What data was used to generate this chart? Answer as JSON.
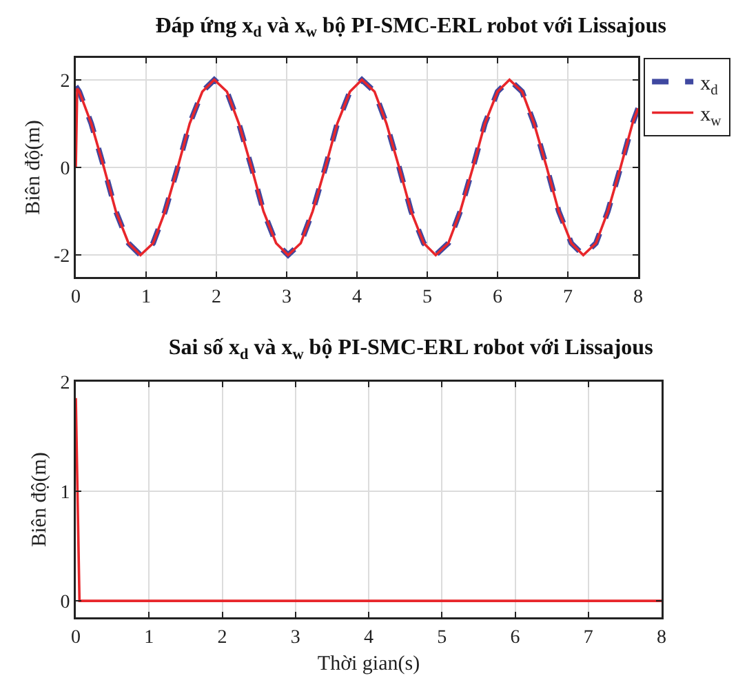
{
  "chart_data": [
    {
      "type": "line",
      "title": "Đáp ứng x$_{d}$ và x$_{w}$ bộ PI-SMC-ERL robot với Lissajous",
      "ylabel": "Biên độ(m)",
      "xlim": [
        0,
        8
      ],
      "xticks": [
        0,
        1,
        2,
        3,
        4,
        5,
        6,
        7,
        8
      ],
      "ylim": [
        -2.5,
        2.5
      ],
      "yticks": [
        -2,
        0,
        2
      ],
      "grid": true,
      "legend": "top right",
      "series": [
        {
          "name": "x$_{d}$",
          "color": "#3f48a0",
          "line_style": "dashed",
          "x": [
            0,
            0.05,
            0.22,
            0.4,
            0.57,
            0.75,
            0.92,
            1.1,
            1.27,
            1.45,
            1.62,
            1.8,
            1.97,
            2.15,
            2.32,
            2.5,
            2.67,
            2.85,
            3.02,
            3.2,
            3.37,
            3.55,
            3.72,
            3.9,
            4.07,
            4.25,
            4.42,
            4.6,
            4.77,
            4.95,
            5.12,
            5.3,
            5.47,
            5.65,
            5.82,
            6.0,
            6.17,
            6.35,
            6.52,
            6.7,
            6.87,
            7.05,
            7.22,
            7.4,
            7.57,
            7.75,
            7.92,
            8.0
          ],
          "values": [
            1.85,
            1.73,
            1,
            0,
            -1,
            -1.73,
            -2,
            -1.73,
            -1,
            0,
            1,
            1.73,
            2,
            1.73,
            1,
            0,
            -1,
            -1.73,
            -2,
            -1.73,
            -1,
            0,
            1,
            1.73,
            2,
            1.73,
            1,
            0,
            -1,
            -1.73,
            -2,
            -1.73,
            -1,
            0,
            1,
            1.73,
            2,
            1.73,
            1,
            0,
            -1,
            -1.73,
            -2,
            -1.73,
            -1,
            0,
            1,
            1.35
          ]
        },
        {
          "name": "x$_{w}$",
          "color": "#e8262b",
          "line_style": "solid",
          "x": [
            0,
            0.02,
            0.05,
            0.22,
            0.4,
            0.57,
            0.75,
            0.92,
            1.1,
            1.27,
            1.45,
            1.62,
            1.8,
            1.97,
            2.15,
            2.32,
            2.5,
            2.67,
            2.85,
            3.02,
            3.2,
            3.37,
            3.55,
            3.72,
            3.9,
            4.07,
            4.25,
            4.42,
            4.6,
            4.77,
            4.95,
            5.12,
            5.3,
            5.47,
            5.65,
            5.82,
            6.0,
            6.17,
            6.35,
            6.52,
            6.7,
            6.87,
            7.05,
            7.22,
            7.4,
            7.57,
            7.75,
            7.92,
            8.0
          ],
          "values": [
            0,
            1.8,
            1.73,
            1,
            0,
            -1,
            -1.73,
            -2,
            -1.73,
            -1,
            0,
            1,
            1.73,
            2,
            1.73,
            1,
            0,
            -1,
            -1.73,
            -2,
            -1.73,
            -1,
            0,
            1,
            1.73,
            2,
            1.73,
            1,
            0,
            -1,
            -1.73,
            -2,
            -1.73,
            -1,
            0,
            1,
            1.73,
            2,
            1.73,
            1,
            0,
            -1,
            -1.73,
            -2,
            -1.73,
            -1,
            0,
            1,
            1.35
          ]
        }
      ]
    },
    {
      "type": "line",
      "title": "Sai số x$_{d}$ và x$_{w}$ bộ PI-SMC-ERL robot với Lissajous",
      "xlabel": "Thời gian(s)",
      "ylabel": "Biên độ(m)",
      "xlim": [
        0,
        8
      ],
      "xticks": [
        0,
        1,
        2,
        3,
        4,
        5,
        6,
        7,
        8
      ],
      "ylim": [
        -0.15,
        2
      ],
      "yticks": [
        0,
        1,
        2
      ],
      "grid": true,
      "series": [
        {
          "color": "#e8262b",
          "line_style": "solid",
          "x": [
            0,
            0.05,
            8
          ],
          "values": [
            1.85,
            0,
            0
          ]
        }
      ]
    }
  ]
}
